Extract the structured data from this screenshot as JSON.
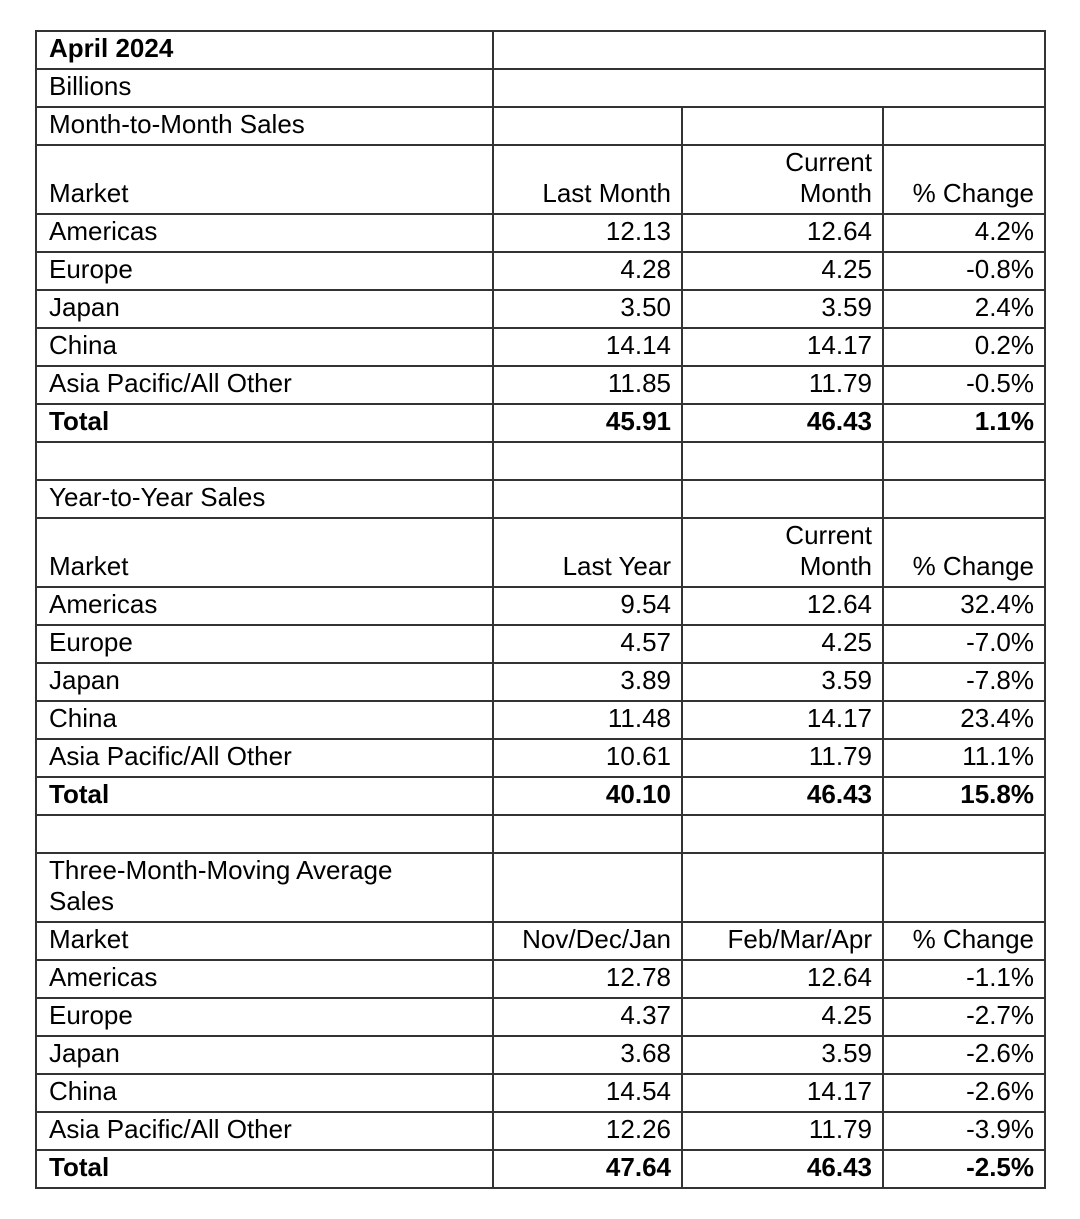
{
  "report": {
    "title": "April 2024",
    "unit": "Billions"
  },
  "sections": [
    {
      "title": "Month-to-Month Sales",
      "headers": {
        "market": "Market",
        "period1": "Last Month",
        "period2": "Current Month",
        "change": "% Change"
      },
      "rows": [
        {
          "market": "Americas",
          "period1": "12.13",
          "period2": "12.64",
          "change": "4.2%"
        },
        {
          "market": "Europe",
          "period1": "4.28",
          "period2": "4.25",
          "change": "-0.8%"
        },
        {
          "market": "Japan",
          "period1": "3.50",
          "period2": "3.59",
          "change": "2.4%"
        },
        {
          "market": "China",
          "period1": "14.14",
          "period2": "14.17",
          "change": "0.2%"
        },
        {
          "market": "Asia Pacific/All Other",
          "period1": "11.85",
          "period2": "11.79",
          "change": "-0.5%"
        },
        {
          "market": "Total",
          "period1": "45.91",
          "period2": "46.43",
          "change": "1.1%"
        }
      ]
    },
    {
      "title": "Year-to-Year Sales",
      "headers": {
        "market": "Market",
        "period1": "Last Year",
        "period2": "Current Month",
        "change": "% Change"
      },
      "rows": [
        {
          "market": "Americas",
          "period1": "9.54",
          "period2": "12.64",
          "change": "32.4%"
        },
        {
          "market": "Europe",
          "period1": "4.57",
          "period2": "4.25",
          "change": "-7.0%"
        },
        {
          "market": "Japan",
          "period1": "3.89",
          "period2": "3.59",
          "change": "-7.8%"
        },
        {
          "market": "China",
          "period1": "11.48",
          "period2": "14.17",
          "change": "23.4%"
        },
        {
          "market": "Asia Pacific/All Other",
          "period1": "10.61",
          "period2": "11.79",
          "change": "11.1%"
        },
        {
          "market": "Total",
          "period1": "40.10",
          "period2": "46.43",
          "change": "15.8%"
        }
      ]
    },
    {
      "title": "Three-Month-Moving Average Sales",
      "headers": {
        "market": "Market",
        "period1": "Nov/Dec/Jan",
        "period2": "Feb/Mar/Apr",
        "change": "% Change"
      },
      "rows": [
        {
          "market": "Americas",
          "period1": "12.78",
          "period2": "12.64",
          "change": "-1.1%"
        },
        {
          "market": "Europe",
          "period1": "4.37",
          "period2": "4.25",
          "change": "-2.7%"
        },
        {
          "market": "Japan",
          "period1": "3.68",
          "period2": "3.59",
          "change": "-2.6%"
        },
        {
          "market": "China",
          "period1": "14.54",
          "period2": "14.17",
          "change": "-2.6%"
        },
        {
          "market": "Asia Pacific/All Other",
          "period1": "12.26",
          "period2": "11.79",
          "change": "-3.9%"
        },
        {
          "market": "Total",
          "period1": "47.64",
          "period2": "46.43",
          "change": "-2.5%"
        }
      ]
    }
  ]
}
